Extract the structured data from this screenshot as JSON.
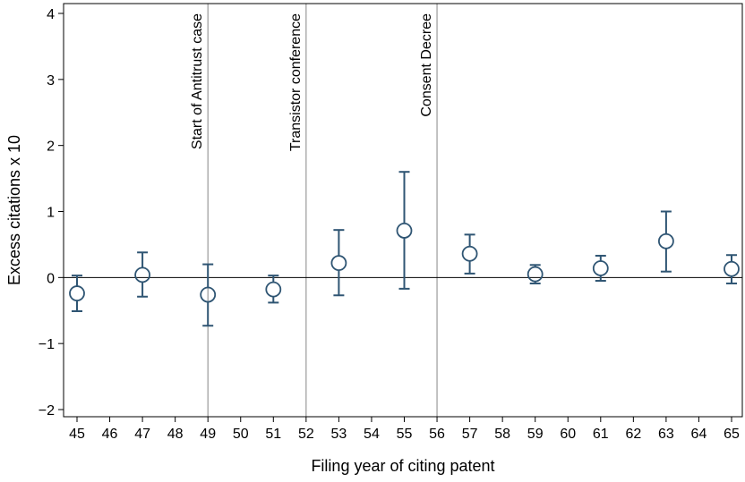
{
  "chart_data": {
    "type": "scatter",
    "subtype": "point-estimates-with-95pct-error-bars",
    "title": "",
    "xlabel": "Filing year of citing patent",
    "ylabel": "Excess citations x 10",
    "xlim": [
      45,
      65
    ],
    "ylim": [
      -2,
      4
    ],
    "x_ticks": [
      "45",
      "46",
      "47",
      "48",
      "49",
      "50",
      "51",
      "52",
      "53",
      "54",
      "55",
      "56",
      "57",
      "58",
      "59",
      "60",
      "61",
      "62",
      "63",
      "64",
      "65"
    ],
    "y_ticks": [
      "−2",
      "−1",
      "0",
      "1",
      "2",
      "3",
      "4"
    ],
    "y_tick_values": [
      -2,
      -1,
      0,
      1,
      2,
      3,
      4
    ],
    "grid": false,
    "reference_line_y": 0,
    "series": [
      {
        "points": [
          {
            "x": 45,
            "y": -0.24,
            "lo": -0.51,
            "hi": 0.03
          },
          {
            "x": 47,
            "y": 0.04,
            "lo": -0.29,
            "hi": 0.38
          },
          {
            "x": 49,
            "y": -0.26,
            "lo": -0.73,
            "hi": 0.2
          },
          {
            "x": 51,
            "y": -0.18,
            "lo": -0.38,
            "hi": 0.03
          },
          {
            "x": 53,
            "y": 0.22,
            "lo": -0.27,
            "hi": 0.72
          },
          {
            "x": 55,
            "y": 0.71,
            "lo": -0.17,
            "hi": 1.6
          },
          {
            "x": 57,
            "y": 0.36,
            "lo": 0.06,
            "hi": 0.65
          },
          {
            "x": 59,
            "y": 0.05,
            "lo": -0.09,
            "hi": 0.19
          },
          {
            "x": 61,
            "y": 0.14,
            "lo": -0.05,
            "hi": 0.33
          },
          {
            "x": 63,
            "y": 0.55,
            "lo": 0.09,
            "hi": 1.0
          },
          {
            "x": 65,
            "y": 0.13,
            "lo": -0.09,
            "hi": 0.34
          }
        ]
      }
    ],
    "vertical_lines": [
      {
        "x": 49,
        "label": "Start of Antitrust case"
      },
      {
        "x": 52,
        "label": "Transistor conference"
      },
      {
        "x": 56,
        "label": "Consent Decree"
      }
    ],
    "colors": {
      "marker": "#2f5573",
      "vline": "#9a9a9a",
      "axis": "#000000"
    }
  }
}
